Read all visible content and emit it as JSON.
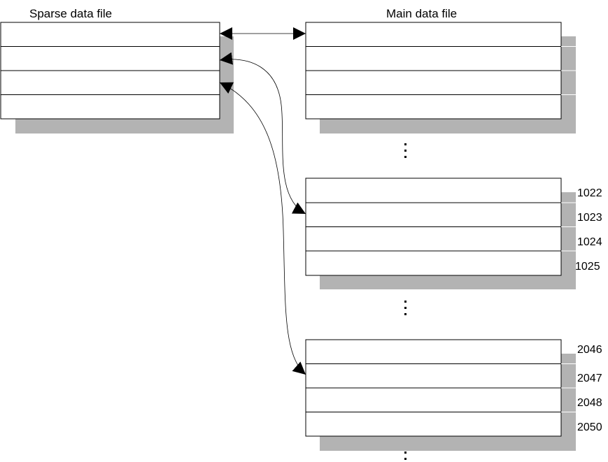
{
  "sparse_file": {
    "title": "Sparse data file"
  },
  "main_file": {
    "title": "Main data file"
  },
  "block_1": {
    "row_labels": [
      "",
      "",
      "",
      ""
    ]
  },
  "block_2": {
    "row_labels": [
      "1022",
      "1023",
      "1024",
      "1025"
    ]
  },
  "block_3": {
    "row_labels": [
      "2046",
      "2047",
      "2048",
      "2050"
    ]
  },
  "colors": {
    "shadow": "#b3b3b3",
    "border": "#000000",
    "line": "#000000",
    "background": "#ffffff"
  },
  "icons": {
    "ellipsis": "vertical-ellipsis-icon",
    "arrowhead": "arrowhead-icon"
  }
}
